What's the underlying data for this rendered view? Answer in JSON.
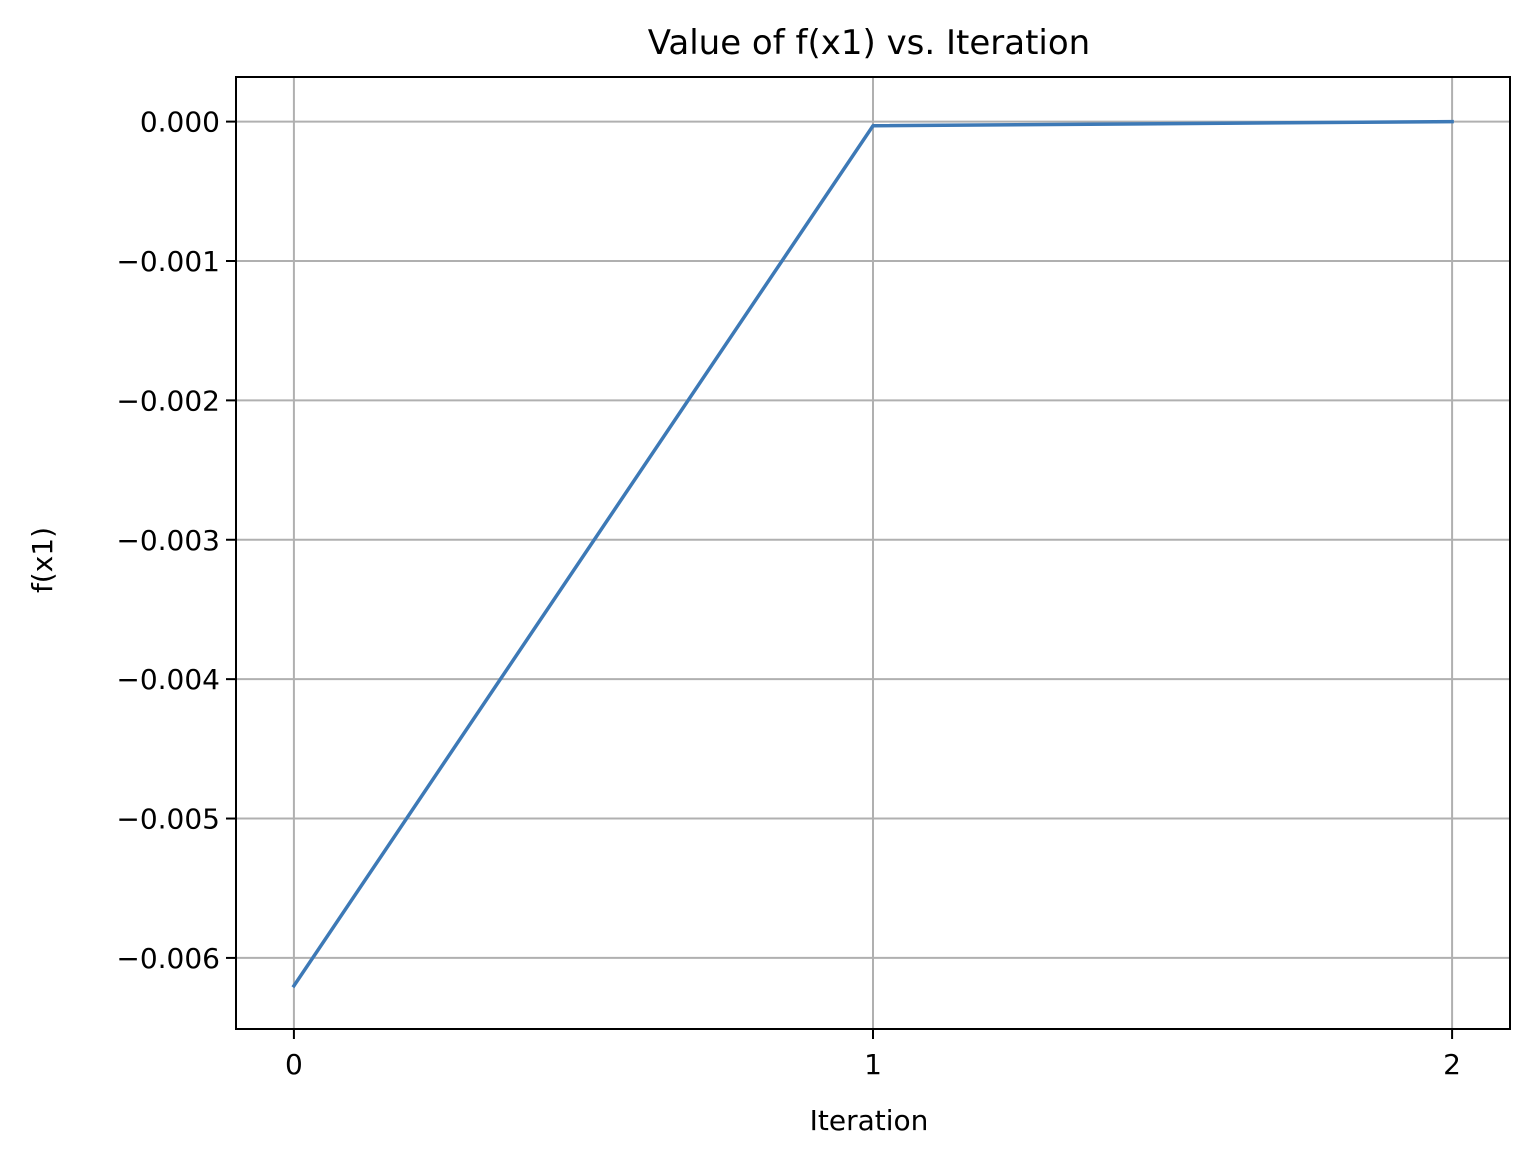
{
  "chart_data": {
    "type": "line",
    "title": "Value of f(x1) vs. Iteration",
    "xlabel": "Iteration",
    "ylabel": "f(x1)",
    "x": [
      0,
      1,
      2
    ],
    "series": [
      {
        "values": [
          -0.0062,
          -3e-05,
          0.0
        ],
        "color": "#3d79b6"
      }
    ],
    "xlim": [
      -0.1,
      2.1
    ],
    "ylim": [
      -0.00651,
      0.00032
    ],
    "xticks": [
      0,
      1,
      2
    ],
    "xtick_labels": [
      "0",
      "1",
      "2"
    ],
    "yticks": [
      0.0,
      -0.001,
      -0.002,
      -0.003,
      -0.004,
      -0.005,
      -0.006
    ],
    "ytick_labels": [
      "0.000",
      "−0.001",
      "−0.002",
      "−0.003",
      "−0.004",
      "−0.005",
      "−0.006"
    ],
    "grid": true
  }
}
